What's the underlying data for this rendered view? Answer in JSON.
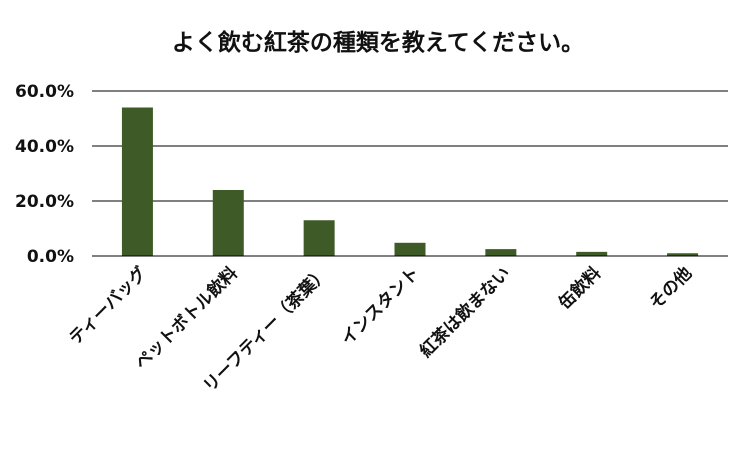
{
  "colors": {
    "bar": "#3d5a27",
    "grid": "#000000",
    "text": "#111111"
  },
  "chart_data": {
    "type": "bar",
    "title": "よく飲む紅茶の種類を教えてください。",
    "xlabel": "",
    "ylabel": "",
    "categories": [
      "ティーバッグ",
      "ペットボトル飲料",
      "リーフティー（茶葉）",
      "インスタント",
      "紅茶は飲まない",
      "缶飲料",
      "その他"
    ],
    "values": [
      54.0,
      24.0,
      13.0,
      4.8,
      2.5,
      1.5,
      1.0
    ],
    "ylim": [
      0,
      60
    ],
    "yticks": [
      0,
      20,
      40,
      60
    ],
    "ytick_labels": [
      "0.0%",
      "20.0%",
      "40.0%",
      "60.0%"
    ],
    "grid": true,
    "legend": "none"
  }
}
